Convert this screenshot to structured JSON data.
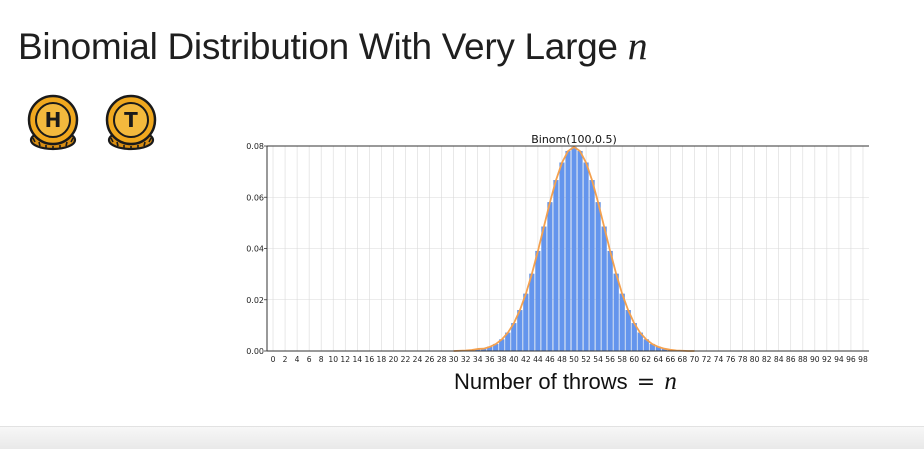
{
  "slide": {
    "title_text": "Binomial Distribution With Very Large",
    "title_var": "n",
    "xlabel_text": "Number of throws",
    "xlabel_eq": "=",
    "xlabel_var": "n"
  },
  "coins": [
    {
      "letter": "H",
      "color": "#f0a81e"
    },
    {
      "letter": "T",
      "color": "#f0a81e"
    }
  ],
  "colors": {
    "bar": "#6495ed",
    "bar_edge": "#4a7fd8",
    "curve": "#f4a14f",
    "grid": "#d9d9d9"
  },
  "chart_data": {
    "type": "bar",
    "title": "Binom(100,0.5)",
    "distribution": {
      "n": 100,
      "p": 0.5
    },
    "x_ticks": [
      0,
      2,
      4,
      6,
      8,
      10,
      12,
      14,
      16,
      18,
      20,
      22,
      24,
      26,
      28,
      30,
      32,
      34,
      36,
      38,
      40,
      42,
      44,
      46,
      48,
      50,
      52,
      54,
      56,
      58,
      60,
      62,
      64,
      66,
      68,
      70,
      72,
      74,
      76,
      78,
      80,
      82,
      84,
      86,
      88,
      90,
      92,
      94,
      96,
      98
    ],
    "y_ticks": [
      "0.00",
      "0.02",
      "0.04",
      "0.06",
      "0.08"
    ],
    "ylim": [
      0,
      0.08
    ],
    "xlim": [
      -1,
      99
    ],
    "grid": true,
    "overlay_curve": "binomial pmf",
    "x": [
      30,
      31,
      32,
      33,
      34,
      35,
      36,
      37,
      38,
      39,
      40,
      41,
      42,
      43,
      44,
      45,
      46,
      47,
      48,
      49,
      50,
      51,
      52,
      53,
      54,
      55,
      56,
      57,
      58,
      59,
      60,
      61,
      62,
      63,
      64,
      65,
      66,
      67,
      68,
      69,
      70
    ],
    "values": [
      0.0,
      0.0001,
      0.0002,
      0.0004,
      0.0008,
      0.0009,
      0.0016,
      0.0027,
      0.0045,
      0.0071,
      0.0108,
      0.0159,
      0.0223,
      0.0301,
      0.039,
      0.0485,
      0.058,
      0.0666,
      0.0735,
      0.078,
      0.0796,
      0.078,
      0.0735,
      0.0666,
      0.058,
      0.0485,
      0.039,
      0.0301,
      0.0223,
      0.0159,
      0.0108,
      0.0071,
      0.0045,
      0.0027,
      0.0016,
      0.0009,
      0.0005,
      0.0002,
      0.0001,
      0.0,
      0.0
    ]
  }
}
